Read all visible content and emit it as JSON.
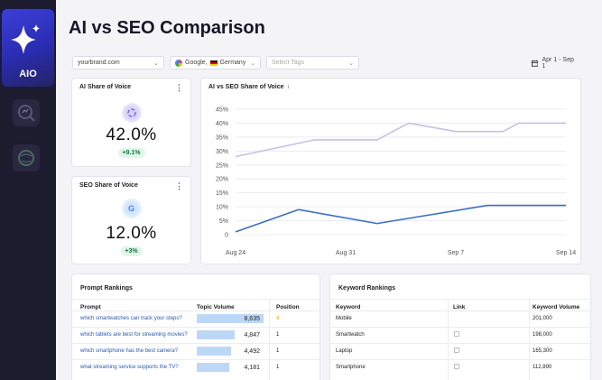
{
  "sidebar": {
    "app_label": "AIO",
    "nav_captions": [
      "",
      ""
    ]
  },
  "page": {
    "title": "AI vs SEO Comparison"
  },
  "filters": {
    "domain": "yourbrand.com",
    "engine": "Google,",
    "country": "Germany",
    "tags_placeholder": "Select Tags",
    "date_range": "Apr 1 - Sep 1"
  },
  "ai_share": {
    "title": "AI Share of Voice",
    "value": "42.0%",
    "delta": "+9.1%"
  },
  "seo_share": {
    "title": "SEO Share of Voice",
    "value": "12.0%",
    "delta": "+3%",
    "logo_letter": "G"
  },
  "chart": {
    "title": "AI vs SEO Share of Voice",
    "info": "i"
  },
  "chart_data": {
    "type": "line",
    "title": "AI vs SEO Share of Voice",
    "x": [
      0,
      1,
      2,
      3,
      4,
      5,
      6,
      7,
      8,
      9,
      10,
      11,
      12,
      13,
      14,
      15,
      16,
      17,
      18,
      19,
      20,
      21
    ],
    "x_tick_labels": [
      {
        "at": 0,
        "label": "Aug 24"
      },
      {
        "at": 7,
        "label": "Aug 31"
      },
      {
        "at": 14,
        "label": "Sep 7"
      },
      {
        "at": 21,
        "label": "Sep 14"
      }
    ],
    "xlim": [
      0,
      21
    ],
    "ylim": [
      0,
      45
    ],
    "y_ticks": [
      "0",
      "5%",
      "10%",
      "15%",
      "20%",
      "25%",
      "30%",
      "35%",
      "40%",
      "45%"
    ],
    "y_tick_values": [
      0,
      5,
      10,
      15,
      20,
      25,
      30,
      35,
      40,
      45
    ],
    "series": [
      {
        "name": "AI",
        "color": "#c5c1e6",
        "points": [
          [
            0,
            28
          ],
          [
            5,
            34
          ],
          [
            9,
            34
          ],
          [
            11,
            40
          ],
          [
            14,
            37
          ],
          [
            17,
            37
          ],
          [
            18,
            40
          ],
          [
            21,
            40
          ]
        ]
      },
      {
        "name": "SEO",
        "color": "#3d6fc4",
        "points": [
          [
            0,
            1
          ],
          [
            4,
            9
          ],
          [
            9,
            4
          ],
          [
            16,
            10.5
          ],
          [
            21,
            10.5
          ]
        ]
      }
    ],
    "grid": true
  },
  "prompt_rankings": {
    "title": "Prompt Rankings",
    "headers": [
      "Prompt",
      "Topic Volume",
      "Position"
    ],
    "rows": [
      {
        "prompt": "which smartwatches can track your steps?",
        "volume": "8,635",
        "volume_value": 8635,
        "position": "4"
      },
      {
        "prompt": "which tablets are best for streaming movies?",
        "volume": "4,847",
        "volume_value": 4847,
        "position": "1"
      },
      {
        "prompt": "which smartphone has the best camera?",
        "volume": "4,492",
        "volume_value": 4492,
        "position": "1"
      },
      {
        "prompt": "what streaming service supports the TV?",
        "volume": "4,181",
        "volume_value": 4181,
        "position": "1"
      }
    ],
    "max_volume": 8635
  },
  "keyword_rankings": {
    "title": "Keyword Rankings",
    "headers": [
      "Keyword",
      "Link",
      "Keyword Volume"
    ],
    "rows": [
      {
        "keyword": "Mobile",
        "has_link": false,
        "volume": "201,000"
      },
      {
        "keyword": "Smartwatch",
        "has_link": true,
        "volume": "198,000"
      },
      {
        "keyword": "Laptop",
        "has_link": true,
        "volume": "165,300"
      },
      {
        "keyword": "Smartphone",
        "has_link": true,
        "volume": "112,890"
      }
    ]
  },
  "colors": {
    "accent": "#3b3fd8",
    "seo_line": "#3d6fc4",
    "ai_line": "#c5c1e6",
    "positive": "#137a43"
  }
}
